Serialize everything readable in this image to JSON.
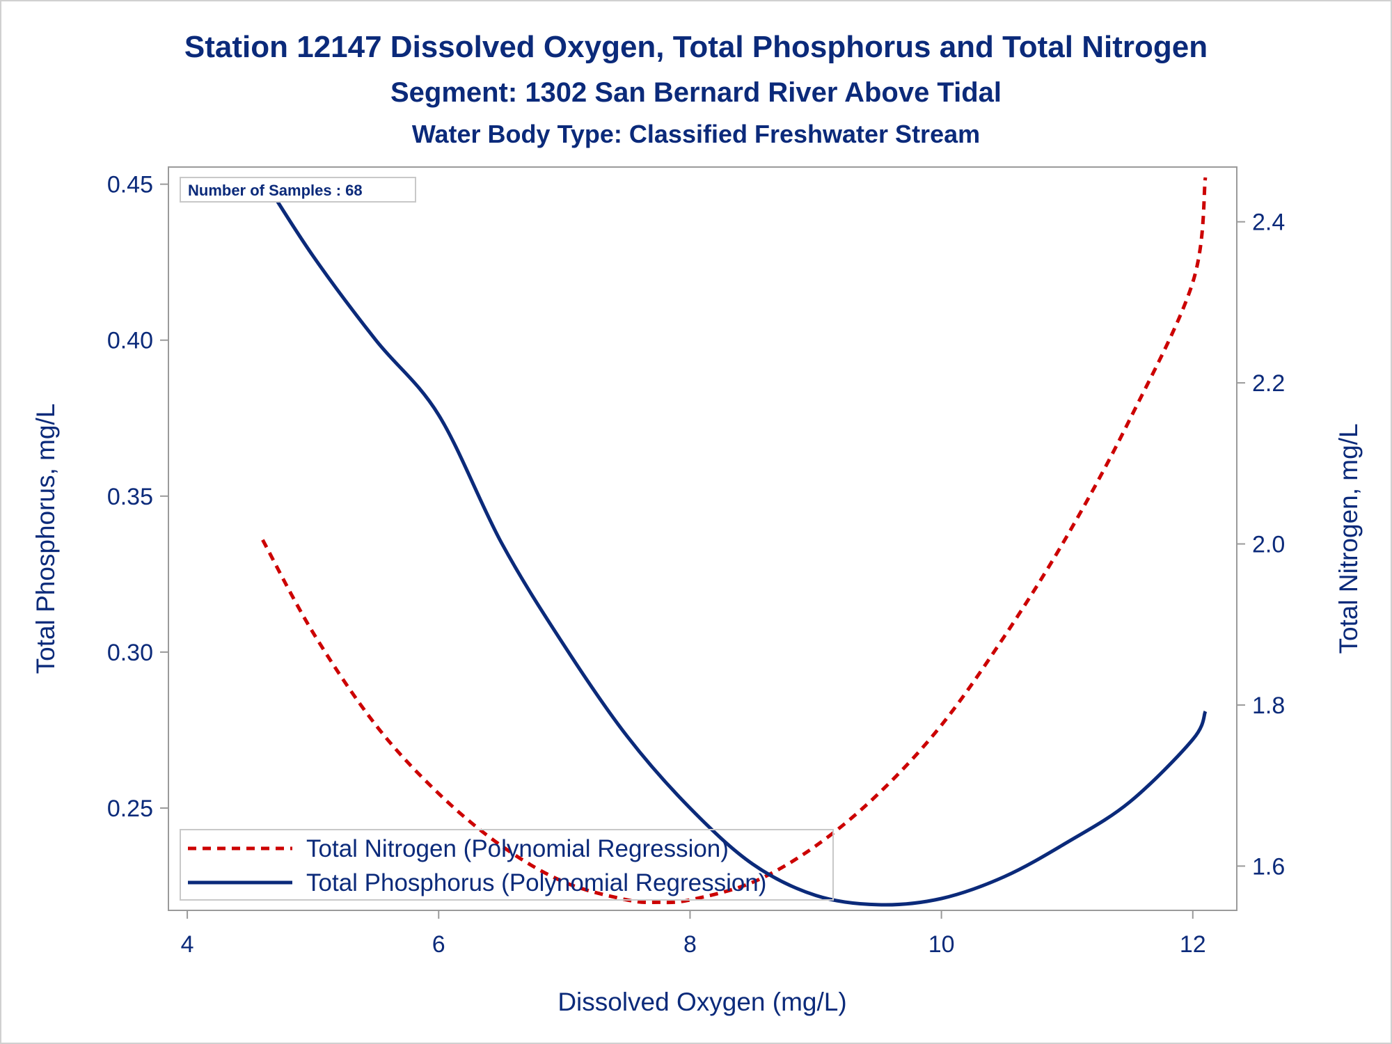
{
  "titles": {
    "line1": "Station 12147  Dissolved Oxygen, Total Phosphorus and Total Nitrogen",
    "line2": "Segment: 1302  San Bernard River Above Tidal",
    "line3": "Water Body Type: Classified Freshwater Stream"
  },
  "inset": {
    "samples_text": "Number of Samples : 68"
  },
  "colors": {
    "text": "#0b2a7a",
    "phosphorus": "#0b2a7a",
    "nitrogen": "#cc0000",
    "frame": "#9a9a9a"
  },
  "chart_data": {
    "type": "line",
    "xlabel": "Dissolved Oxygen (mg/L)",
    "ylabel": "Total Phosphorus, mg/L",
    "y2label": "Total Nitrogen, mg/L",
    "xlim": [
      3.85,
      12.35
    ],
    "ylim": [
      0.2172,
      0.4555
    ],
    "y2lim": [
      1.545,
      2.468
    ],
    "x_ticks": [
      "4",
      "6",
      "8",
      "10",
      "12"
    ],
    "y_ticks": [
      "0.25",
      "0.30",
      "0.35",
      "0.40",
      "0.45"
    ],
    "y2_ticks": [
      "1.6",
      "1.8",
      "2.0",
      "2.2",
      "2.4"
    ],
    "grid": false,
    "legend_position": "bottom-left",
    "series": [
      {
        "name": "Total Nitrogen (Polynomial Regression)",
        "axis": "right",
        "style": "dashed",
        "x": [
          4.6,
          5.0,
          5.5,
          6.0,
          6.5,
          7.0,
          7.5,
          7.75,
          8.0,
          8.5,
          9.0,
          9.5,
          10.0,
          10.5,
          11.0,
          11.5,
          12.0,
          12.1
        ],
        "y": [
          2.005,
          1.89,
          1.775,
          1.69,
          1.625,
          1.58,
          1.558,
          1.555,
          1.558,
          1.58,
          1.625,
          1.69,
          1.775,
          1.885,
          2.01,
          2.155,
          2.325,
          2.455
        ]
      },
      {
        "name": "Total Phosphorus (Polynomial Regression)",
        "axis": "left",
        "style": "solid",
        "x": [
          4.6,
          5.0,
          5.5,
          6.0,
          6.5,
          7.0,
          7.5,
          8.0,
          8.5,
          9.0,
          9.5,
          10.0,
          10.5,
          11.0,
          11.5,
          12.0,
          12.1
        ],
        "y": [
          0.452,
          0.427,
          0.4,
          0.376,
          0.335,
          0.302,
          0.273,
          0.25,
          0.232,
          0.222,
          0.219,
          0.221,
          0.228,
          0.239,
          0.252,
          0.272,
          0.281
        ]
      }
    ]
  }
}
